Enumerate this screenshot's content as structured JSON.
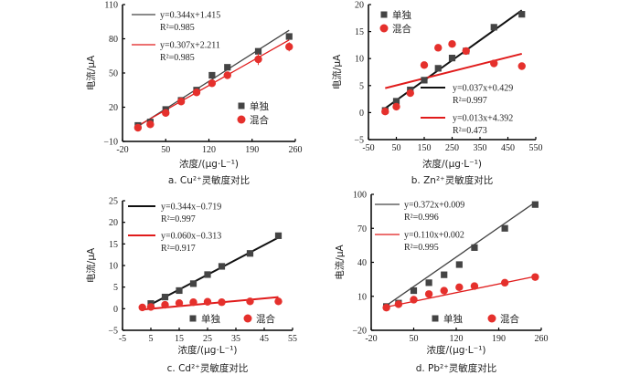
{
  "figure": {
    "legend_labels": {
      "single": "单独",
      "mixed": "混合"
    },
    "colors": {
      "single": "#444444",
      "mixed": "#e5302c",
      "single_line_dark": "#111111",
      "single_line_gray": "#444444",
      "mixed_line": "#e01b1b",
      "axis": "#000000"
    }
  },
  "chart_data": [
    {
      "id": "a",
      "type": "scatter",
      "title": "a.  Cu²⁺灵敏度对比",
      "xlabel": "浓度/(μg·L⁻¹)",
      "ylabel": "电流/μA",
      "xlim": [
        -20,
        260
      ],
      "ylim": [
        -10,
        110
      ],
      "xticks": [
        -20,
        50,
        120,
        190,
        260
      ],
      "yticks": [
        -10,
        20,
        50,
        80,
        110
      ],
      "legend_position": "center-right",
      "series": [
        {
          "name": "单独",
          "marker": "square",
          "x": [
            5,
            25,
            50,
            75,
            100,
            125,
            150,
            200,
            250
          ],
          "y": [
            4,
            7,
            18,
            26,
            35,
            48,
            55,
            69,
            82
          ],
          "fit": {
            "slope": 0.344,
            "intercept": 1.415,
            "equation": "y=0.344x+1.415",
            "r2": "R²=0.985",
            "x_range": [
              5,
              250
            ]
          }
        },
        {
          "name": "混合",
          "marker": "circle",
          "x": [
            5,
            25,
            50,
            75,
            100,
            125,
            150,
            200,
            250
          ],
          "y": [
            2,
            5,
            15,
            25,
            33,
            41,
            48,
            62,
            73
          ],
          "yerr": [
            2,
            2,
            1.5,
            1.5,
            1.5,
            1.5,
            1.5,
            5,
            4
          ],
          "fit": {
            "slope": 0.307,
            "intercept": 2.211,
            "equation": "y=0.307x+2.211",
            "r2": "R²=0.985",
            "x_range": [
              5,
              250
            ]
          }
        }
      ]
    },
    {
      "id": "b",
      "type": "scatter",
      "title": "b.  Zn²⁺灵敏度对比",
      "xlabel": "浓度/(μg·L⁻¹)",
      "ylabel": "电流/μA",
      "xlim": [
        -50,
        550
      ],
      "ylim": [
        -5,
        20
      ],
      "xticks": [
        -50,
        50,
        150,
        250,
        350,
        450,
        550
      ],
      "yticks": [
        -5,
        0,
        5,
        10,
        15,
        20
      ],
      "legend_position": "top-left",
      "series": [
        {
          "name": "单独",
          "marker": "square",
          "x": [
            10,
            50,
            100,
            150,
            200,
            250,
            300,
            400,
            500
          ],
          "y": [
            0.4,
            2.1,
            4.2,
            6.0,
            8.2,
            10.1,
            11.4,
            15.8,
            18.2
          ],
          "fit": {
            "slope": 0.037,
            "intercept": 0.429,
            "equation": "y=0.037x+0.429",
            "r2": "R²=0.997",
            "x_range": [
              10,
              500
            ]
          }
        },
        {
          "name": "混合",
          "marker": "circle",
          "x": [
            10,
            50,
            100,
            150,
            200,
            250,
            300,
            400,
            500
          ],
          "y": [
            0.2,
            1.1,
            3.6,
            8.8,
            12.0,
            12.7,
            11.4,
            9.1,
            8.6
          ],
          "fit": {
            "slope": 0.013,
            "intercept": 4.392,
            "equation": "y=0.013x+4.392",
            "r2": "R²=0.473",
            "x_range": [
              10,
              500
            ]
          }
        }
      ]
    },
    {
      "id": "c",
      "type": "scatter",
      "title": "c.  Cd²⁺灵敏度对比",
      "xlabel": "浓度/(μg·L⁻¹)",
      "ylabel": "电流/μA",
      "xlim": [
        -5,
        55
      ],
      "ylim": [
        -5,
        25
      ],
      "xticks": [
        -5,
        5,
        15,
        25,
        35,
        45,
        55
      ],
      "yticks": [
        -5,
        0,
        5,
        10,
        15,
        20,
        25
      ],
      "legend_position": "bottom-right",
      "series": [
        {
          "name": "单独",
          "marker": "square",
          "x": [
            5,
            10,
            15,
            20,
            25,
            30,
            40,
            50
          ],
          "y": [
            1.2,
            2.7,
            4.2,
            5.8,
            7.9,
            9.8,
            12.8,
            16.9
          ],
          "fit": {
            "slope": 0.344,
            "intercept": -0.719,
            "equation": "y=0.344x−0.719",
            "r2": "R²=0.997",
            "x_range": [
              5,
              50
            ]
          }
        },
        {
          "name": "混合",
          "marker": "circle",
          "x": [
            2,
            5,
            10,
            15,
            20,
            25,
            30,
            40,
            50
          ],
          "y": [
            0.3,
            0.4,
            0.9,
            1.3,
            1.5,
            1.6,
            1.5,
            1.7,
            1.7
          ],
          "fit": {
            "slope": 0.06,
            "intercept": -0.313,
            "equation": "y=0.060x−0.313",
            "r2": "R²=0.917",
            "x_range": [
              2,
              50
            ]
          }
        }
      ]
    },
    {
      "id": "d",
      "type": "scatter",
      "title": "d.  Pb²⁺灵敏度对比",
      "xlabel": "浓度/(μg·L⁻¹)",
      "ylabel": "电流/μA",
      "xlim": [
        -20,
        260
      ],
      "ylim": [
        -20,
        100
      ],
      "xticks": [
        -20,
        50,
        120,
        190,
        260
      ],
      "yticks": [
        -20,
        10,
        40,
        70,
        100
      ],
      "legend_position": "bottom-right",
      "series": [
        {
          "name": "单独",
          "marker": "square",
          "x": [
            5,
            25,
            50,
            75,
            100,
            125,
            150,
            200,
            250
          ],
          "y": [
            1,
            4,
            15,
            22,
            29,
            38,
            53,
            70,
            91
          ],
          "fit": {
            "slope": 0.372,
            "intercept": 0.009,
            "equation": "y=0.372x+0.009",
            "r2": "R²=0.996",
            "x_range": [
              5,
              250
            ]
          }
        },
        {
          "name": "混合",
          "marker": "circle",
          "x": [
            5,
            25,
            50,
            75,
            100,
            125,
            150,
            200,
            250
          ],
          "y": [
            0,
            3,
            7,
            12,
            15,
            18,
            19,
            22,
            27
          ],
          "fit": {
            "slope": 0.11,
            "intercept": 0.002,
            "equation": "y=0.110x+0.002",
            "r2": "R²=0.995",
            "x_range": [
              5,
              250
            ]
          }
        }
      ]
    }
  ]
}
